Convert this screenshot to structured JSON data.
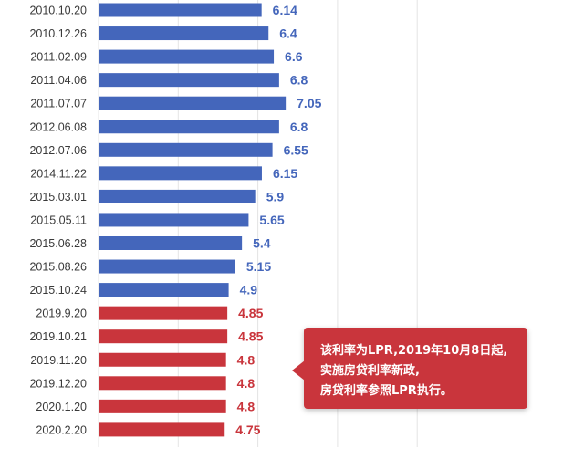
{
  "colors": {
    "blue": "#4466bb",
    "red": "#c9353c",
    "grid": "#e4e4e4"
  },
  "chart_data": {
    "type": "bar",
    "orientation": "horizontal",
    "categories": [
      "2010.10.20",
      "2010.12.26",
      "2011.02.09",
      "2011.04.06",
      "2011.07.07",
      "2012.06.08",
      "2012.07.06",
      "2014.11.22",
      "2015.03.01",
      "2015.05.11",
      "2015.06.28",
      "2015.08.26",
      "2015.10.24",
      "2019.9.20",
      "2019.10.21",
      "2019.11.20",
      "2019.12.20",
      "2020.1.20",
      "2020.2.20"
    ],
    "values": [
      6.14,
      6.4,
      6.6,
      6.8,
      7.05,
      6.8,
      6.55,
      6.15,
      5.9,
      5.65,
      5.4,
      5.15,
      4.9,
      4.85,
      4.85,
      4.8,
      4.8,
      4.8,
      4.75
    ],
    "value_labels": [
      "6.14",
      "6.4",
      "6.6",
      "6.8",
      "7.05",
      "6.8",
      "6.55",
      "6.15",
      "5.9",
      "5.65",
      "5.4",
      "5.15",
      "4.9",
      "4.85",
      "4.85",
      "4.8",
      "4.8",
      "4.8",
      "4.75"
    ],
    "bar_colors": [
      "blue",
      "blue",
      "blue",
      "blue",
      "blue",
      "blue",
      "blue",
      "blue",
      "blue",
      "blue",
      "blue",
      "blue",
      "blue",
      "red",
      "red",
      "red",
      "red",
      "red",
      "red"
    ],
    "xlim": [
      0,
      12
    ],
    "grid": true,
    "legend": "none"
  },
  "callout": {
    "lines": [
      "该利率为LPR,2019年10月8日起,",
      "实施房贷利率新政,",
      "房贷利率参照LPR执行。"
    ]
  }
}
